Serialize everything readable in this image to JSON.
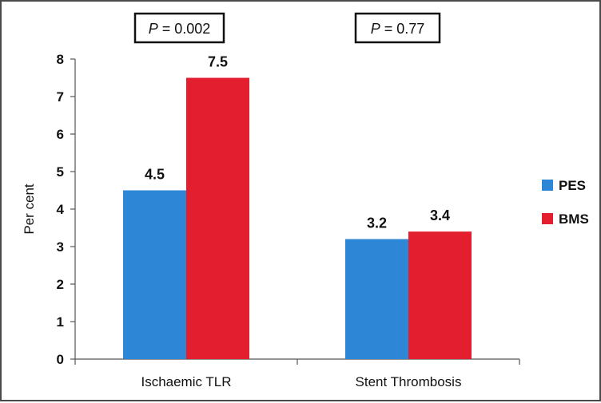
{
  "chart_data": {
    "type": "bar",
    "title": "",
    "xlabel": "",
    "ylabel": "Per cent",
    "ylim": [
      0,
      8
    ],
    "yticks": [
      0,
      1,
      2,
      3,
      4,
      5,
      6,
      7,
      8
    ],
    "categories": [
      "Ischaemic TLR",
      "Stent Thrombosis"
    ],
    "series": [
      {
        "name": "PES",
        "color": "#2e86d6",
        "values": [
          4.5,
          3.2
        ]
      },
      {
        "name": "BMS",
        "color": "#e31e2f",
        "values": [
          7.5,
          3.4
        ]
      }
    ],
    "data_labels": [
      [
        "4.5",
        "3.2"
      ],
      [
        "7.5",
        "3.4"
      ]
    ],
    "annotations": [
      {
        "italic": "P",
        "rest": " = 0.002"
      },
      {
        "italic": "P",
        "rest": " = 0.77"
      }
    ],
    "legend_position": "right",
    "grid": false
  }
}
